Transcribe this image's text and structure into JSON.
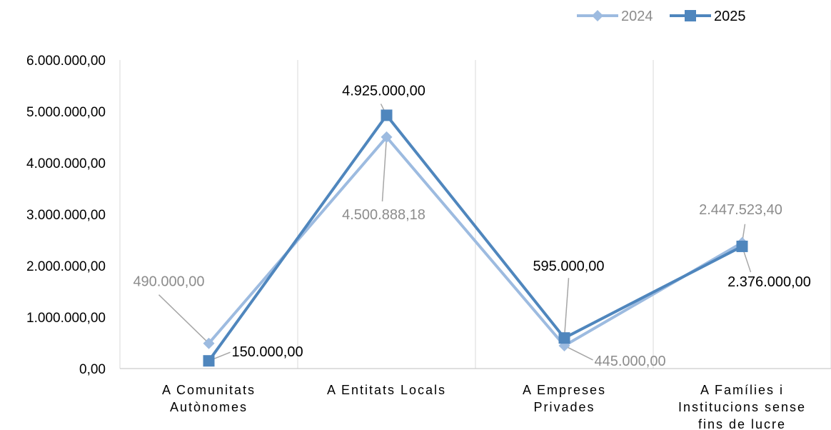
{
  "chart_data": {
    "type": "line",
    "categories": [
      [
        "A Comunitats",
        "Autònomes"
      ],
      [
        "A Entitats Locals"
      ],
      [
        "A Empreses",
        "Privades"
      ],
      [
        "A Famílies i",
        "Institucions sense",
        "fins de lucre"
      ]
    ],
    "ylim": [
      0,
      6000000
    ],
    "yticks": [
      "0,00",
      "1.000.000,00",
      "2.000.000,00",
      "3.000.000,00",
      "4.000.000,00",
      "5.000.000,00",
      "6.000.000,00"
    ],
    "grid": "vertical category separators",
    "legend_position": "top-right",
    "series": [
      {
        "name": "2024",
        "marker": "diamond",
        "color": "#9dbbe0",
        "label_color": "#8c8c8c",
        "values": [
          490000,
          4500888.18,
          445000,
          2447523.4
        ],
        "labels": [
          "490.000,00",
          "4.500.888,18",
          "445.000,00",
          "2.447.523,40"
        ]
      },
      {
        "name": "2025",
        "marker": "square",
        "color": "#4f86bd",
        "label_color": "#000000",
        "values": [
          150000,
          4925000,
          595000,
          2376000
        ],
        "labels": [
          "150.000,00",
          "4.925.000,00",
          "595.000,00",
          "2.376.000,00"
        ]
      }
    ]
  }
}
